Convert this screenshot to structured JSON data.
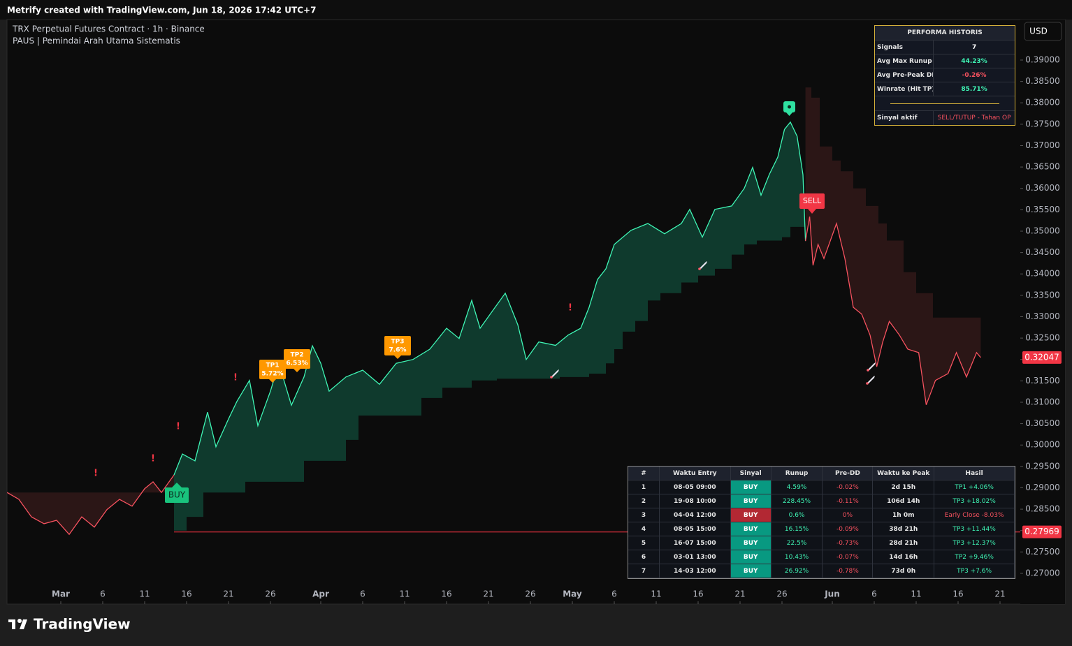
{
  "header": {
    "credit": "Metrify created with TradingView.com, Jun 18, 2026 17:42 UTC+7",
    "symbol": "TRX Perpetual Futures Contract · 1h · Binance",
    "indicator": "PAUS | Pemindai Arah Utama Sistematis",
    "currency": "USD"
  },
  "chart_data": {
    "type": "line",
    "series": [
      {
        "color": "#f7525f",
        "x": [
          -6.4,
          -5,
          -3.5,
          -2,
          -0.5,
          1,
          2.5,
          4,
          5.5,
          7,
          8.5,
          10,
          11,
          12,
          13.5
        ],
        "values": [
          0.2889,
          0.2873,
          0.2832,
          0.2816,
          0.2824,
          0.2791,
          0.2832,
          0.2808,
          0.2849,
          0.2873,
          0.2857,
          0.2898,
          0.2914,
          0.2889,
          0.293
        ]
      },
      {
        "color": "#3ff5b5",
        "x": [
          13.5,
          14.5,
          16,
          17.5,
          18.5,
          20,
          21,
          22.5,
          23.5,
          25,
          26,
          27.5,
          29,
          30,
          31,
          32,
          34,
          36,
          38,
          40,
          42,
          44,
          46,
          47.5,
          49,
          50,
          51.5,
          53,
          54.5,
          55.5,
          57,
          59,
          60.5,
          62,
          63,
          64,
          65,
          66,
          68,
          70,
          72,
          74,
          75,
          76.5,
          78,
          80,
          81.5,
          82.5,
          83.5,
          84.5,
          85.5,
          86.3,
          87,
          87.8,
          88.5,
          88.8
        ],
        "values": [
          0.293,
          0.2979,
          0.2963,
          0.3077,
          0.2996,
          0.3061,
          0.3102,
          0.3151,
          0.3045,
          0.3126,
          0.3191,
          0.3093,
          0.3159,
          0.3232,
          0.3191,
          0.3126,
          0.3159,
          0.3175,
          0.3142,
          0.3191,
          0.32,
          0.3224,
          0.3273,
          0.3249,
          0.3338,
          0.3273,
          0.3314,
          0.3355,
          0.3281,
          0.32,
          0.3241,
          0.3233,
          0.3257,
          0.3273,
          0.3322,
          0.3387,
          0.3412,
          0.3469,
          0.3502,
          0.3518,
          0.3494,
          0.3518,
          0.3551,
          0.3486,
          0.3551,
          0.3559,
          0.36,
          0.3649,
          0.3584,
          0.3633,
          0.3673,
          0.3738,
          0.3755,
          0.3722,
          0.3632,
          0.3477
        ]
      },
      {
        "color": "#f7525f",
        "x": [
          88.8,
          89.3,
          89.7,
          90.3,
          91,
          92.5,
          93.5,
          94.5,
          95.5,
          96.5,
          97.3,
          98,
          98.8,
          100,
          101,
          102.3,
          103.2,
          104.3,
          105.8,
          106.8,
          108,
          109.2,
          109.7
        ],
        "values": [
          0.3477,
          0.3534,
          0.342,
          0.3469,
          0.3436,
          0.3518,
          0.3436,
          0.3322,
          0.3306,
          0.3257,
          0.3183,
          0.324,
          0.3289,
          0.3257,
          0.3224,
          0.3216,
          0.3094,
          0.3151,
          0.3167,
          0.3216,
          0.3159,
          0.3216,
          0.32047
        ]
      }
    ],
    "bands": [
      {
        "color": "#2b1616",
        "x": [
          -6.4,
          13.5
        ],
        "values": [
          0.2889,
          0.2889
        ]
      },
      {
        "color": "#0f3a2d",
        "x": [
          13.5,
          15,
          17,
          22,
          29,
          34,
          35.5,
          43,
          45.5,
          49,
          52,
          59.5,
          63,
          65,
          66,
          67,
          68.5,
          70,
          71.5,
          74,
          76,
          78,
          80,
          81.5,
          83,
          86,
          87,
          88.8
        ],
        "values": [
          0.28,
          0.2832,
          0.2889,
          0.2914,
          0.2963,
          0.3012,
          0.3069,
          0.311,
          0.3134,
          0.3151,
          0.3155,
          0.3159,
          0.3167,
          0.3191,
          0.3224,
          0.3265,
          0.329,
          0.3338,
          0.3355,
          0.338,
          0.3396,
          0.3412,
          0.3445,
          0.3469,
          0.3478,
          0.3486,
          0.351,
          0.351
        ]
      },
      {
        "color": "#2b1616",
        "x": [
          88.8,
          89.5,
          90.5,
          92,
          93,
          94.5,
          96,
          97.5,
          98.5,
          100.5,
          102,
          104,
          109.7
        ],
        "values": [
          0.3836,
          0.3812,
          0.3698,
          0.3665,
          0.364,
          0.36,
          0.3559,
          0.3518,
          0.3478,
          0.3404,
          0.3355,
          0.3298,
          0.3298
        ]
      }
    ],
    "stop_level": 0.27969,
    "stop_color": "#b22833",
    "last_price": 0.32047,
    "last_color": "#f23645",
    "xlim": [
      -6.4167,
      114.4167
    ],
    "ylim": [
      0.26281,
      0.39947
    ],
    "xticks": [
      {
        "value": 0,
        "label": "Mar"
      },
      {
        "value": 5,
        "label": "6"
      },
      {
        "value": 10,
        "label": "11"
      },
      {
        "value": 15,
        "label": "16"
      },
      {
        "value": 20,
        "label": "21"
      },
      {
        "value": 25,
        "label": "26"
      },
      {
        "value": 31,
        "label": "Apr"
      },
      {
        "value": 36,
        "label": "6"
      },
      {
        "value": 41,
        "label": "11"
      },
      {
        "value": 46,
        "label": "16"
      },
      {
        "value": 51,
        "label": "21"
      },
      {
        "value": 56,
        "label": "26"
      },
      {
        "value": 61,
        "label": "May"
      },
      {
        "value": 66,
        "label": "6"
      },
      {
        "value": 71,
        "label": "11"
      },
      {
        "value": 76,
        "label": "16"
      },
      {
        "value": 81,
        "label": "21"
      },
      {
        "value": 86,
        "label": "26"
      },
      {
        "value": 92,
        "label": "Jun"
      },
      {
        "value": 97,
        "label": "6"
      },
      {
        "value": 102,
        "label": "11"
      },
      {
        "value": 107,
        "label": "16"
      },
      {
        "value": 112,
        "label": "21"
      }
    ],
    "yticks": [
      {
        "value": 0.27,
        "label": "0.27000"
      },
      {
        "value": 0.275,
        "label": "0.27500"
      },
      {
        "value": 0.28,
        "label": "0.28000"
      },
      {
        "value": 0.285,
        "label": "0.28500"
      },
      {
        "value": 0.29,
        "label": "0.29000"
      },
      {
        "value": 0.295,
        "label": "0.29500"
      },
      {
        "value": 0.3,
        "label": "0.30000"
      },
      {
        "value": 0.305,
        "label": "0.30500"
      },
      {
        "value": 0.31,
        "label": "0.31000"
      },
      {
        "value": 0.315,
        "label": "0.31500"
      },
      {
        "value": 0.32,
        "label": "0.32000"
      },
      {
        "value": 0.325,
        "label": "0.32500"
      },
      {
        "value": 0.33,
        "label": "0.33000"
      },
      {
        "value": 0.335,
        "label": "0.33500"
      },
      {
        "value": 0.34,
        "label": "0.34000"
      },
      {
        "value": 0.345,
        "label": "0.34500"
      },
      {
        "value": 0.35,
        "label": "0.35000"
      },
      {
        "value": 0.355,
        "label": "0.35500"
      },
      {
        "value": 0.36,
        "label": "0.36000"
      },
      {
        "value": 0.365,
        "label": "0.36500"
      },
      {
        "value": 0.37,
        "label": "0.37000"
      },
      {
        "value": 0.375,
        "label": "0.37500"
      },
      {
        "value": 0.38,
        "label": "0.38000"
      },
      {
        "value": 0.385,
        "label": "0.38500"
      },
      {
        "value": 0.39,
        "label": "0.39000"
      }
    ],
    "grid": false,
    "annotations": {
      "buy": "BUY",
      "sell": "SELL",
      "alert": "!",
      "tp": [
        {
          "name": "TP1",
          "gain": "5.72%"
        },
        {
          "name": "TP2",
          "gain": "6.53%"
        },
        {
          "name": "TP3",
          "gain": "7.6%"
        }
      ]
    }
  },
  "performance": {
    "title": "PERFORMA HISTORIS",
    "rows": [
      [
        "Signals",
        "7"
      ],
      [
        "Avg Max Runup",
        "44.23%"
      ],
      [
        "Avg Pre-Peak DD",
        "-0.26%"
      ],
      [
        "Winrate (Hit TP)",
        "85.71%"
      ]
    ],
    "value_colors": [
      "#ffffff",
      "#3ff5b5",
      "#f7525f",
      "#3ff5b5"
    ],
    "active": [
      "Sinyal aktif",
      "SELL/TUTUP - Tahan OP"
    ]
  },
  "trades": {
    "columns": [
      "#",
      "Waktu Entry",
      "Sinyal",
      "Runup",
      "Pre-DD",
      "Waktu ke Peak",
      "Hasil"
    ],
    "rows": [
      [
        "1",
        "08-05 09:00",
        "BUY",
        "4.59%",
        "-0.02%",
        "2d 15h",
        "TP1 +4.06%"
      ],
      [
        "2",
        "19-08 10:00",
        "BUY",
        "228.45%",
        "-0.11%",
        "106d 14h",
        "TP3 +18.02%"
      ],
      [
        "3",
        "04-04 12:00",
        "BUY",
        "0.6%",
        "0%",
        "1h 0m",
        "Early Close -8.03%"
      ],
      [
        "4",
        "08-05 15:00",
        "BUY",
        "16.15%",
        "-0.09%",
        "38d 21h",
        "TP3 +11.44%"
      ],
      [
        "5",
        "16-07 15:00",
        "BUY",
        "22.5%",
        "-0.73%",
        "28d 21h",
        "TP3 +12.37%"
      ],
      [
        "6",
        "03-01 13:00",
        "BUY",
        "10.43%",
        "-0.07%",
        "14d 16h",
        "TP2 +9.46%"
      ],
      [
        "7",
        "14-03 12:00",
        "BUY",
        "26.92%",
        "-0.78%",
        "73d 0h",
        "TP3 +7.6%"
      ]
    ],
    "signal_colors": [
      "#089981",
      "#089981",
      "#b22833",
      "#089981",
      "#089981",
      "#089981",
      "#089981"
    ],
    "result_colors": [
      "#3ff5b5",
      "#3ff5b5",
      "#f7525f",
      "#3ff5b5",
      "#3ff5b5",
      "#3ff5b5",
      "#3ff5b5"
    ]
  },
  "footer": {
    "brand": "TradingView"
  }
}
